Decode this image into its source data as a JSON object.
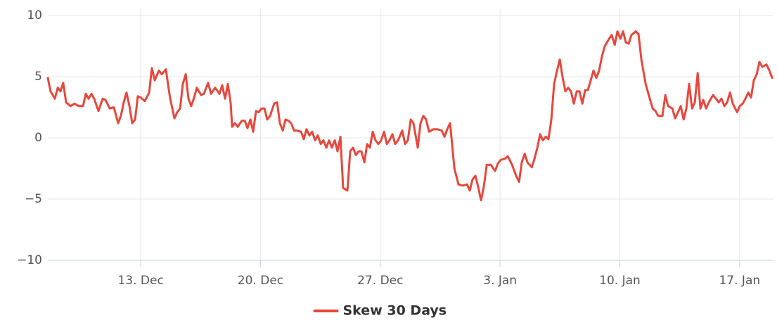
{
  "chart_data": {
    "type": "line",
    "x": [
      7.57,
      7.73,
      7.98,
      8.15,
      8.31,
      8.47,
      8.64,
      8.89,
      9.13,
      9.38,
      9.63,
      9.79,
      9.95,
      10.12,
      10.28,
      10.53,
      10.78,
      10.94,
      11.19,
      11.43,
      11.68,
      11.84,
      12.01,
      12.17,
      12.34,
      12.5,
      12.67,
      12.83,
      13.0,
      13.24,
      13.49,
      13.65,
      13.82,
      14.06,
      14.23,
      14.47,
      14.72,
      14.97,
      15.13,
      15.3,
      15.46,
      15.63,
      15.79,
      15.95,
      16.12,
      16.28,
      16.53,
      16.69,
      16.94,
      17.11,
      17.35,
      17.6,
      17.76,
      17.93,
      18.09,
      18.26,
      18.34,
      18.5,
      18.67,
      18.91,
      19.08,
      19.24,
      19.41,
      19.57,
      19.74,
      19.9,
      20.06,
      20.23,
      20.39,
      20.56,
      20.8,
      20.97,
      21.13,
      21.3,
      21.46,
      21.63,
      21.79,
      21.96,
      22.12,
      22.37,
      22.53,
      22.69,
      22.86,
      23.02,
      23.19,
      23.35,
      23.52,
      23.68,
      23.85,
      24.01,
      24.17,
      24.34,
      24.5,
      24.67,
      24.83,
      25.08,
      25.24,
      25.41,
      25.57,
      25.74,
      25.9,
      26.07,
      26.23,
      26.39,
      26.56,
      26.72,
      26.89,
      27.05,
      27.22,
      27.38,
      27.54,
      27.71,
      27.87,
      28.04,
      28.28,
      28.45,
      28.61,
      28.78,
      28.94,
      29.19,
      29.35,
      29.52,
      29.68,
      29.85,
      30.09,
      30.34,
      30.59,
      30.75,
      30.91,
      31.08,
      31.33,
      31.57,
      31.82,
      32.07,
      32.23,
      32.39,
      32.56,
      32.72,
      32.89,
      33.05,
      33.22,
      33.46,
      33.71,
      33.87,
      34.04,
      34.29,
      34.45,
      34.7,
      34.94,
      35.11,
      35.27,
      35.44,
      35.6,
      35.85,
      36.01,
      36.18,
      36.34,
      36.5,
      36.67,
      36.83,
      37.0,
      37.16,
      37.33,
      37.49,
      37.66,
      37.82,
      37.98,
      38.15,
      38.31,
      38.48,
      38.64,
      38.81,
      38.97,
      39.13,
      39.3,
      39.46,
      39.63,
      39.79,
      39.96,
      40.12,
      40.37,
      40.53,
      40.7,
      40.86,
      41.03,
      41.19,
      41.35,
      41.52,
      41.68,
      41.93,
      42.09,
      42.26,
      42.51,
      42.75,
      42.92,
      43.08,
      43.24,
      43.49,
      43.66,
      43.82,
      44.07,
      44.23,
      44.4,
      44.56,
      44.73,
      44.89,
      45.05,
      45.22,
      45.38,
      45.55,
      45.71,
      45.88,
      46.04,
      46.2,
      46.45,
      46.62,
      46.78,
      46.94,
      47.11,
      47.27,
      47.44,
      47.6,
      47.85,
      48.01,
      48.18,
      48.34,
      48.51,
      48.67,
      48.83,
      49.0,
      49.16,
      49.33,
      49.57,
      49.74,
      49.9
    ],
    "series": [
      {
        "name": "Skew 30 Days",
        "color": "#e8473c",
        "values": [
          4.9,
          3.8,
          3.2,
          4.1,
          3.8,
          4.5,
          2.9,
          2.6,
          2.8,
          2.6,
          2.6,
          3.6,
          3.2,
          3.6,
          3.2,
          2.2,
          3.2,
          3.1,
          2.4,
          2.5,
          1.2,
          1.8,
          2.9,
          3.7,
          2.6,
          1.2,
          1.5,
          3.4,
          3.3,
          3.0,
          3.7,
          5.7,
          4.7,
          5.5,
          5.2,
          5.6,
          3.2,
          1.6,
          2.1,
          2.4,
          4.4,
          5.2,
          3.2,
          2.6,
          3.3,
          4.1,
          3.5,
          3.6,
          4.5,
          3.6,
          4.1,
          3.6,
          4.3,
          3.2,
          4.4,
          2.8,
          0.9,
          1.2,
          0.9,
          1.4,
          1.4,
          0.8,
          1.5,
          0.5,
          2.2,
          2.1,
          2.4,
          2.4,
          1.5,
          1.8,
          2.8,
          2.9,
          1.2,
          0.6,
          1.5,
          1.4,
          1.2,
          0.6,
          0.6,
          0.5,
          -0.1,
          0.7,
          0.2,
          0.5,
          -0.2,
          0.2,
          -0.5,
          -0.2,
          -0.8,
          -0.2,
          -0.8,
          -0.2,
          -1.1,
          0.1,
          -4.1,
          -4.3,
          -1.1,
          -0.8,
          -1.4,
          -1.1,
          -1.1,
          -2.0,
          -0.5,
          -0.8,
          0.5,
          -0.2,
          -0.5,
          -0.2,
          0.5,
          -0.5,
          -0.2,
          0.3,
          -0.5,
          -0.2,
          0.6,
          -0.5,
          -0.2,
          1.5,
          1.2,
          -0.8,
          1.2,
          1.8,
          1.5,
          0.5,
          0.7,
          0.7,
          0.6,
          0.1,
          0.7,
          1.2,
          -2.5,
          -3.8,
          -3.9,
          -3.8,
          -4.3,
          -3.4,
          -3.1,
          -4.0,
          -5.1,
          -4.0,
          -2.2,
          -2.2,
          -2.7,
          -2.1,
          -1.8,
          -1.7,
          -1.5,
          -2.2,
          -3.1,
          -3.6,
          -2.0,
          -1.3,
          -2.0,
          -2.4,
          -1.7,
          -0.8,
          0.3,
          -0.2,
          0.1,
          -0.1,
          1.5,
          4.4,
          5.5,
          6.4,
          4.9,
          3.8,
          4.1,
          3.8,
          2.8,
          3.8,
          3.8,
          2.8,
          3.9,
          3.9,
          4.7,
          5.5,
          4.9,
          5.5,
          6.7,
          7.5,
          8.1,
          8.4,
          7.6,
          8.7,
          8.1,
          8.7,
          7.8,
          7.7,
          8.4,
          8.7,
          8.5,
          6.4,
          4.4,
          3.2,
          2.4,
          2.2,
          1.8,
          1.8,
          3.5,
          2.6,
          2.4,
          1.6,
          2.1,
          2.6,
          1.5,
          2.4,
          4.4,
          2.4,
          2.9,
          5.3,
          2.4,
          3.1,
          2.4,
          2.9,
          3.5,
          3.2,
          2.9,
          3.2,
          2.6,
          2.9,
          3.7,
          2.8,
          2.1,
          2.6,
          2.8,
          3.2,
          3.7,
          3.3,
          4.7,
          5.2,
          6.2,
          5.8,
          6.0,
          5.5,
          4.9
        ]
      }
    ],
    "xlim": [
      7.57,
      49.98
    ],
    "xticks": [
      {
        "value": 13,
        "label": "13. Dec"
      },
      {
        "value": 20,
        "label": "20. Dec"
      },
      {
        "value": 27,
        "label": "27. Dec"
      },
      {
        "value": 34,
        "label": "3. Jan"
      },
      {
        "value": 41,
        "label": "10. Jan"
      },
      {
        "value": 48,
        "label": "17. Jan"
      }
    ],
    "ylim": [
      -10,
      10
    ],
    "yticks": [
      10,
      5,
      0,
      {
        "value": -5,
        "label": "−5"
      },
      {
        "value": -10,
        "label": "−10"
      }
    ],
    "grid": true,
    "legend": "bottom"
  }
}
